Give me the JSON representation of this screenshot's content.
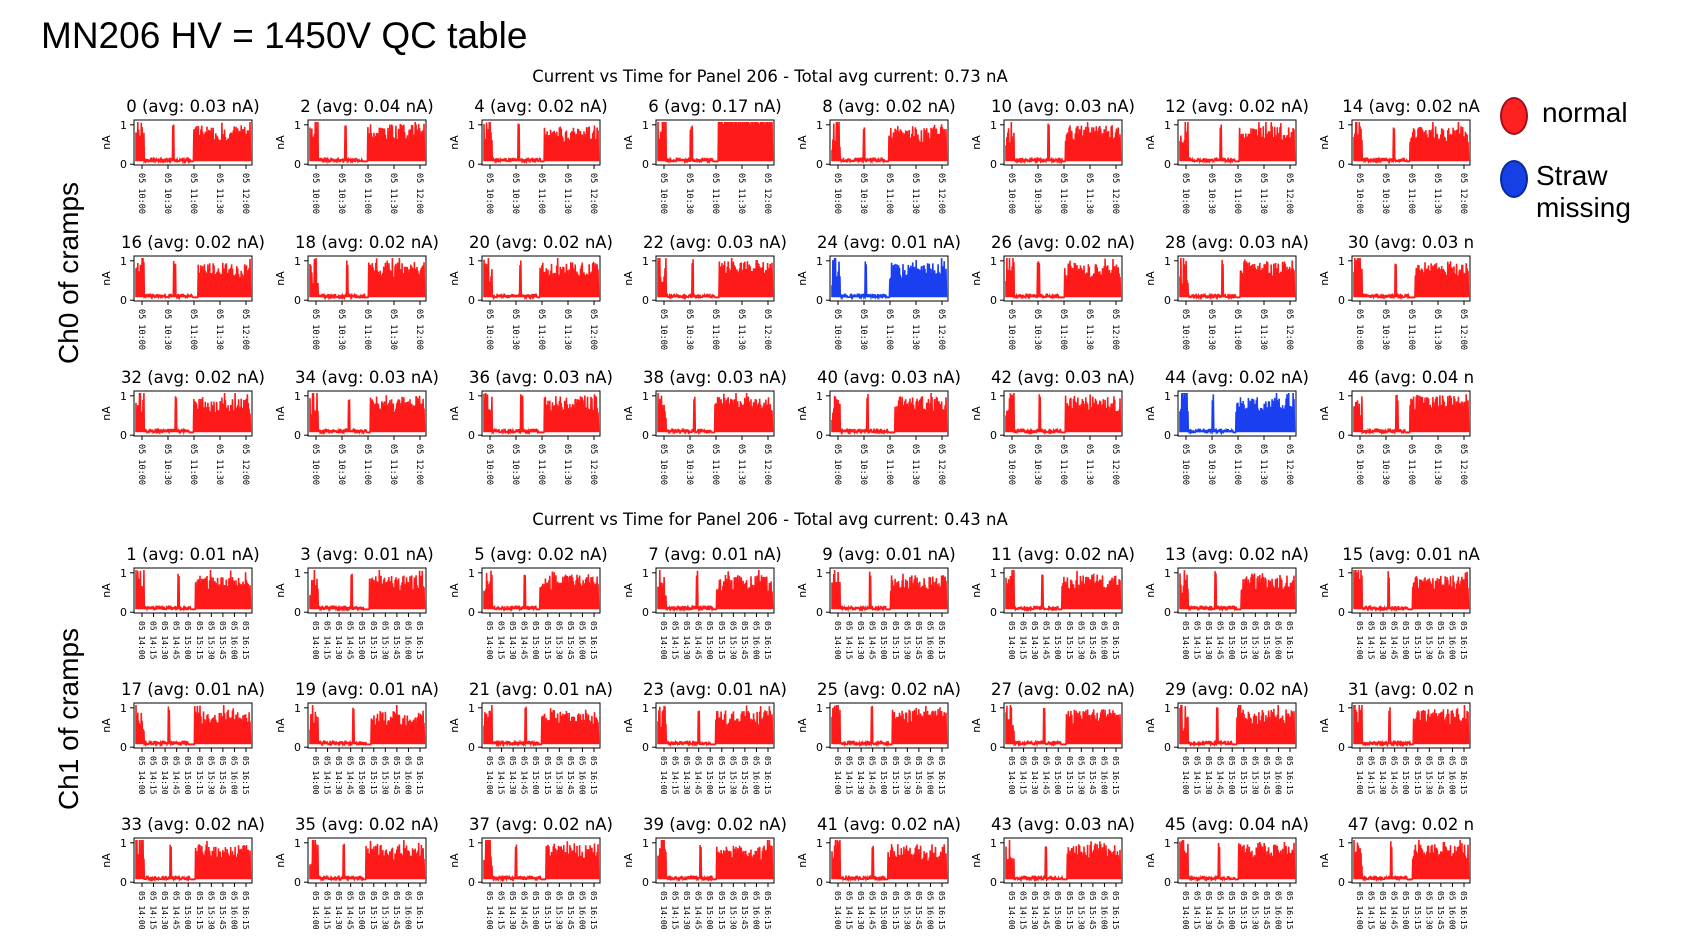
{
  "slide": {
    "title": "MN206 HV = 1450V QC table"
  },
  "legend": {
    "items": [
      {
        "label": "normal",
        "color": "#ff2020",
        "border": "#a01020"
      },
      {
        "label": "Straw\nmissing",
        "color": "#1540e6",
        "border": "#0a2a9a"
      }
    ]
  },
  "side_labels": {
    "ch0": "Ch0 of cramps",
    "ch1": "Ch1 of cramps"
  },
  "chart_data": [
    {
      "type": "line",
      "title": "Current vs Time for Panel 206 - Total avg current: 0.73 nA",
      "ylabel": "nA",
      "ylim": [
        0,
        1
      ],
      "yticks": [
        "0",
        "1"
      ],
      "xticks": [
        "05 10:00",
        "05 10:30",
        "05 11:00",
        "05 11:30",
        "05 12:00"
      ],
      "grid": false,
      "series": [
        {
          "channel": 0,
          "title": "0 (avg: 0.03 nA)",
          "avg": 0.03,
          "color": "#ff1a1a"
        },
        {
          "channel": 2,
          "title": "2 (avg: 0.04 nA)",
          "avg": 0.04,
          "color": "#ff1a1a"
        },
        {
          "channel": 4,
          "title": "4 (avg: 0.02 nA)",
          "avg": 0.02,
          "color": "#ff1a1a"
        },
        {
          "channel": 6,
          "title": "6 (avg: 0.17 nA)",
          "avg": 0.17,
          "color": "#ff1a1a"
        },
        {
          "channel": 8,
          "title": "8 (avg: 0.02 nA)",
          "avg": 0.02,
          "color": "#ff1a1a"
        },
        {
          "channel": 10,
          "title": "10 (avg: 0.03 nA)",
          "avg": 0.03,
          "color": "#ff1a1a"
        },
        {
          "channel": 12,
          "title": "12 (avg: 0.02 nA)",
          "avg": 0.02,
          "color": "#ff1a1a"
        },
        {
          "channel": 14,
          "title": "14 (avg: 0.02 nA",
          "avg": 0.02,
          "color": "#ff1a1a"
        },
        {
          "channel": 16,
          "title": "16 (avg: 0.02 nA)",
          "avg": 0.02,
          "color": "#ff1a1a"
        },
        {
          "channel": 18,
          "title": "18 (avg: 0.02 nA)",
          "avg": 0.02,
          "color": "#ff1a1a"
        },
        {
          "channel": 20,
          "title": "20 (avg: 0.02 nA)",
          "avg": 0.02,
          "color": "#ff1a1a"
        },
        {
          "channel": 22,
          "title": "22 (avg: 0.03 nA)",
          "avg": 0.03,
          "color": "#ff1a1a"
        },
        {
          "channel": 24,
          "title": "24 (avg: 0.01 nA)",
          "avg": 0.01,
          "color": "#1a3ff0"
        },
        {
          "channel": 26,
          "title": "26 (avg: 0.02 nA)",
          "avg": 0.02,
          "color": "#ff1a1a"
        },
        {
          "channel": 28,
          "title": "28 (avg: 0.03 nA)",
          "avg": 0.03,
          "color": "#ff1a1a"
        },
        {
          "channel": 30,
          "title": "30 (avg: 0.03 n",
          "avg": 0.03,
          "color": "#ff1a1a"
        },
        {
          "channel": 32,
          "title": "32 (avg: 0.02 nA)",
          "avg": 0.02,
          "color": "#ff1a1a"
        },
        {
          "channel": 34,
          "title": "34 (avg: 0.03 nA)",
          "avg": 0.03,
          "color": "#ff1a1a"
        },
        {
          "channel": 36,
          "title": "36 (avg: 0.03 nA)",
          "avg": 0.03,
          "color": "#ff1a1a"
        },
        {
          "channel": 38,
          "title": "38 (avg: 0.03 nA)",
          "avg": 0.03,
          "color": "#ff1a1a"
        },
        {
          "channel": 40,
          "title": "40 (avg: 0.03 nA)",
          "avg": 0.03,
          "color": "#ff1a1a"
        },
        {
          "channel": 42,
          "title": "42 (avg: 0.03 nA)",
          "avg": 0.03,
          "color": "#ff1a1a"
        },
        {
          "channel": 44,
          "title": "44 (avg: 0.02 nA)",
          "avg": 0.02,
          "color": "#1a3ff0"
        },
        {
          "channel": 46,
          "title": "46 (avg: 0.04 n",
          "avg": 0.04,
          "color": "#ff1a1a"
        }
      ]
    },
    {
      "type": "line",
      "title": "Current vs Time for Panel 206 - Total avg current: 0.43 nA",
      "ylabel": "nA",
      "ylim": [
        0,
        1
      ],
      "yticks": [
        "0",
        "1"
      ],
      "xticks": [
        "05 14:00",
        "05 14:15",
        "05 14:30",
        "05 14:45",
        "05 15:00",
        "05 15:15",
        "05 15:30",
        "05 15:45",
        "05 16:00",
        "05 16:15"
      ],
      "grid": false,
      "series": [
        {
          "channel": 1,
          "title": "1 (avg: 0.01 nA)",
          "avg": 0.01,
          "color": "#ff1a1a"
        },
        {
          "channel": 3,
          "title": "3 (avg: 0.01 nA)",
          "avg": 0.01,
          "color": "#ff1a1a"
        },
        {
          "channel": 5,
          "title": "5 (avg: 0.02 nA)",
          "avg": 0.02,
          "color": "#ff1a1a"
        },
        {
          "channel": 7,
          "title": "7 (avg: 0.01 nA)",
          "avg": 0.01,
          "color": "#ff1a1a"
        },
        {
          "channel": 9,
          "title": "9 (avg: 0.01 nA)",
          "avg": 0.01,
          "color": "#ff1a1a"
        },
        {
          "channel": 11,
          "title": "11 (avg: 0.02 nA)",
          "avg": 0.02,
          "color": "#ff1a1a"
        },
        {
          "channel": 13,
          "title": "13 (avg: 0.02 nA)",
          "avg": 0.02,
          "color": "#ff1a1a"
        },
        {
          "channel": 15,
          "title": "15 (avg: 0.01 nA",
          "avg": 0.01,
          "color": "#ff1a1a"
        },
        {
          "channel": 17,
          "title": "17 (avg: 0.01 nA)",
          "avg": 0.01,
          "color": "#ff1a1a"
        },
        {
          "channel": 19,
          "title": "19 (avg: 0.01 nA)",
          "avg": 0.01,
          "color": "#ff1a1a"
        },
        {
          "channel": 21,
          "title": "21 (avg: 0.01 nA)",
          "avg": 0.01,
          "color": "#ff1a1a"
        },
        {
          "channel": 23,
          "title": "23 (avg: 0.01 nA)",
          "avg": 0.01,
          "color": "#ff1a1a"
        },
        {
          "channel": 25,
          "title": "25 (avg: 0.02 nA)",
          "avg": 0.02,
          "color": "#ff1a1a"
        },
        {
          "channel": 27,
          "title": "27 (avg: 0.02 nA)",
          "avg": 0.02,
          "color": "#ff1a1a"
        },
        {
          "channel": 29,
          "title": "29 (avg: 0.02 nA)",
          "avg": 0.02,
          "color": "#ff1a1a"
        },
        {
          "channel": 31,
          "title": "31 (avg: 0.02 n",
          "avg": 0.02,
          "color": "#ff1a1a"
        },
        {
          "channel": 33,
          "title": "33 (avg: 0.02 nA)",
          "avg": 0.02,
          "color": "#ff1a1a"
        },
        {
          "channel": 35,
          "title": "35 (avg: 0.02 nA)",
          "avg": 0.02,
          "color": "#ff1a1a"
        },
        {
          "channel": 37,
          "title": "37 (avg: 0.02 nA)",
          "avg": 0.02,
          "color": "#ff1a1a"
        },
        {
          "channel": 39,
          "title": "39 (avg: 0.02 nA)",
          "avg": 0.02,
          "color": "#ff1a1a"
        },
        {
          "channel": 41,
          "title": "41 (avg: 0.02 nA)",
          "avg": 0.02,
          "color": "#ff1a1a"
        },
        {
          "channel": 43,
          "title": "43 (avg: 0.03 nA)",
          "avg": 0.03,
          "color": "#ff1a1a"
        },
        {
          "channel": 45,
          "title": "45 (avg: 0.04 nA)",
          "avg": 0.04,
          "color": "#ff1a1a"
        },
        {
          "channel": 47,
          "title": "47 (avg: 0.02 n",
          "avg": 0.02,
          "color": "#ff1a1a"
        }
      ]
    }
  ]
}
